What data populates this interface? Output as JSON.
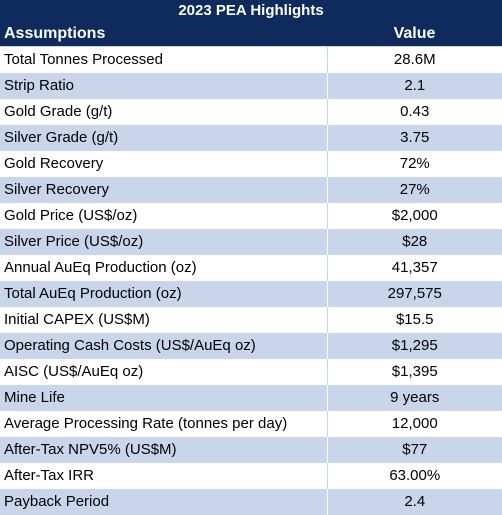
{
  "table": {
    "title": "2023 PEA Highlights",
    "headers": {
      "label": "Assumptions",
      "value": "Value"
    },
    "colors": {
      "header_bg": "#0f2a5c",
      "header_text": "#ffffff",
      "stripe": "#c9d5ea",
      "plain": "#ffffff"
    },
    "rows": [
      {
        "label": "Total Tonnes Processed",
        "value": "28.6M"
      },
      {
        "label": "Strip Ratio",
        "value": "2.1"
      },
      {
        "label": "Gold Grade (g/t)",
        "value": "0.43"
      },
      {
        "label": "Silver Grade (g/t)",
        "value": "3.75"
      },
      {
        "label": "Gold Recovery",
        "value": "72%"
      },
      {
        "label": "Silver Recovery",
        "value": "27%"
      },
      {
        "label": "Gold Price (US$/oz)",
        "value": "$2,000"
      },
      {
        "label": "Silver Price (US$/oz)",
        "value": "$28"
      },
      {
        "label": "Annual AuEq Production (oz)",
        "value": "41,357"
      },
      {
        "label": "Total AuEq Production (oz)",
        "value": "297,575"
      },
      {
        "label": "Initial CAPEX (US$M)",
        "value": "$15.5"
      },
      {
        "label": "Operating Cash Costs (US$/AuEq oz)",
        "value": "$1,295"
      },
      {
        "label": "AISC (US$/AuEq oz)",
        "value": "$1,395"
      },
      {
        "label": "Mine Life",
        "value": "9 years"
      },
      {
        "label": "Average Processing Rate (tonnes per day)",
        "value": "12,000"
      },
      {
        "label": "After-Tax NPV5% (US$M)",
        "value": "$77"
      },
      {
        "label": "After-Tax IRR",
        "value": "63.00%"
      },
      {
        "label": "Payback Period",
        "value": "2.4"
      }
    ]
  }
}
